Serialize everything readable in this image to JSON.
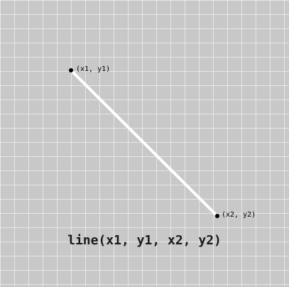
{
  "diagram": {
    "point1_label": "(x1, y1)",
    "point2_label": "(x2, y2)",
    "caption": "line(x1, y1, x2, y2)"
  },
  "colors": {
    "background": "#c8c8c8",
    "grid": "#e6e6e6",
    "line": "#ffffff",
    "point": "#000000"
  }
}
